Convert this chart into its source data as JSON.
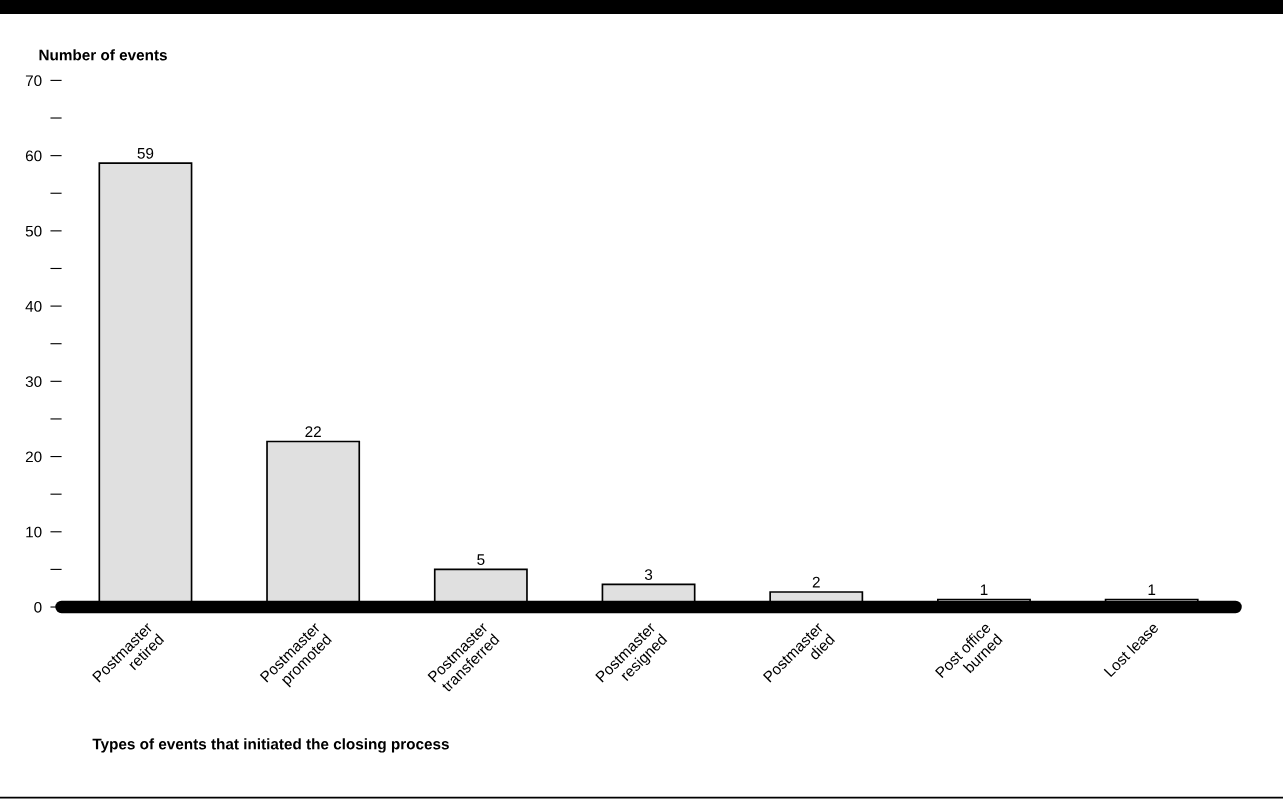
{
  "chart_data": {
    "type": "bar",
    "ylabel": "Number of events",
    "xlabel": "Types of events that initiated the closing process",
    "categories": [
      "Postmaster\nretired",
      "Postmaster\npromoted",
      "Postmaster\ntransferred",
      "Postmaster\nresigned",
      "Postmaster\ndied",
      "Post office\nburned",
      "Lost lease"
    ],
    "values": [
      59,
      22,
      5,
      3,
      2,
      1,
      1
    ],
    "color": "#e0e0e0",
    "data_labels": true,
    "ylim": [
      0,
      70
    ],
    "yticks": [
      0,
      {
        "value": 5,
        "label": null
      },
      10,
      {
        "value": 15,
        "label": null
      },
      20,
      {
        "value": 25,
        "label": null
      },
      30,
      {
        "value": 35,
        "label": null
      },
      40,
      {
        "value": 45,
        "label": null
      },
      50,
      {
        "value": 55,
        "label": null
      },
      60,
      {
        "value": 65,
        "label": null
      },
      70
    ],
    "grid": false,
    "legend": false
  }
}
